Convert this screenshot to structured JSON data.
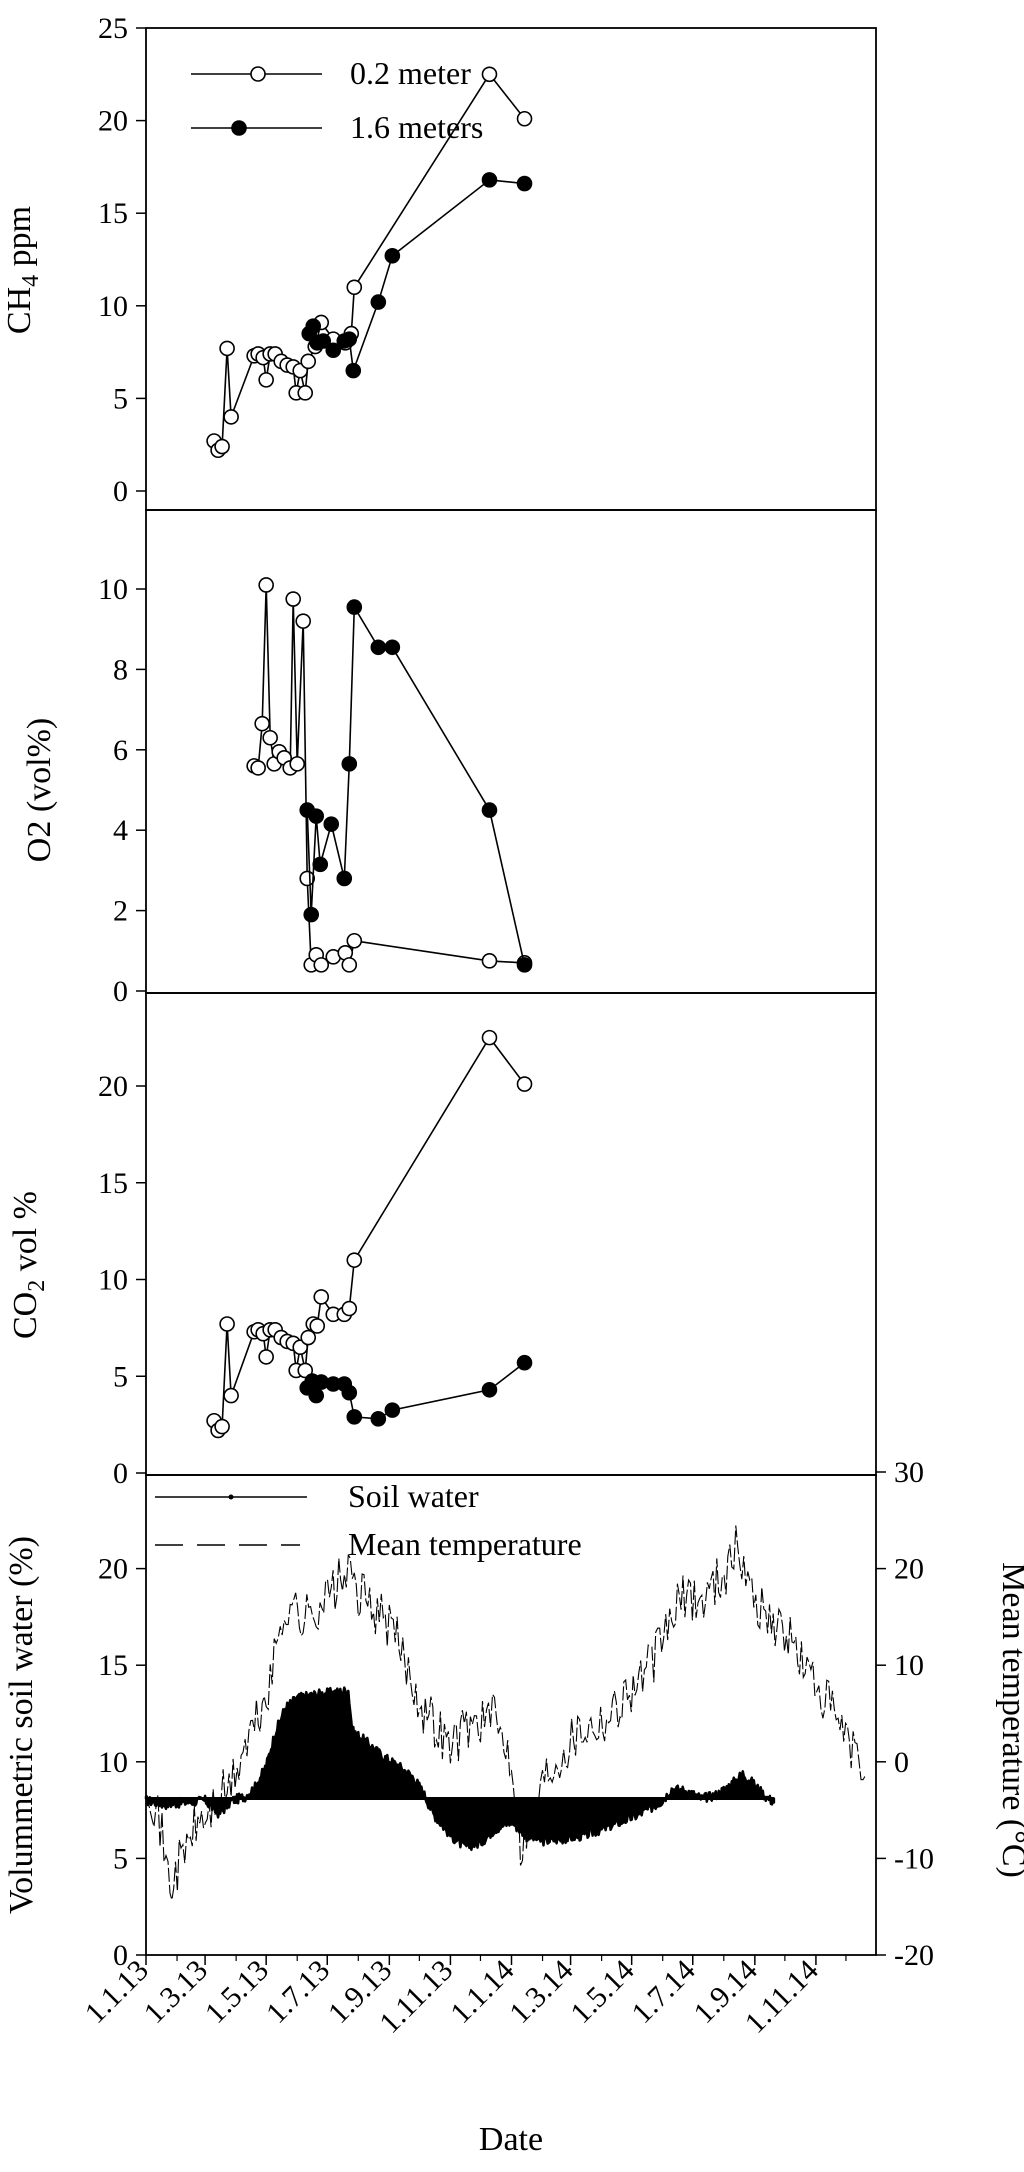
{
  "chart_data": [
    {
      "type": "line",
      "panel": "ch4",
      "ylabel_main": "CH",
      "ylabel_sub": "4",
      "ylabel_rest": " ppm",
      "ylim": [
        0,
        25
      ],
      "yticks": [
        0,
        5,
        10,
        15,
        20,
        25
      ],
      "legend": {
        "position": "top-left",
        "entries": [
          "0.2  meter",
          "1.6 meters"
        ]
      },
      "series": [
        {
          "name": "0.2 meter",
          "marker": "open-circle",
          "points": [
            [
              "2013-03-10",
              2.7
            ],
            [
              "2013-03-14",
              2.2
            ],
            [
              "2013-03-18",
              2.4
            ],
            [
              "2013-03-23",
              7.7
            ],
            [
              "2013-03-27",
              4.0
            ],
            [
              "2013-04-19",
              7.3
            ],
            [
              "2013-04-23",
              7.4
            ],
            [
              "2013-04-28",
              7.2
            ],
            [
              "2013-05-01",
              6.0
            ],
            [
              "2013-05-05",
              7.4
            ],
            [
              "2013-05-10",
              7.4
            ],
            [
              "2013-05-16",
              7.0
            ],
            [
              "2013-05-22",
              6.8
            ],
            [
              "2013-05-28",
              6.7
            ],
            [
              "2013-05-31",
              5.3
            ],
            [
              "2013-06-04",
              6.5
            ],
            [
              "2013-06-09",
              5.3
            ],
            [
              "2013-06-12",
              7.0
            ],
            [
              "2013-06-19",
              7.8
            ],
            [
              "2013-06-25",
              9.1
            ],
            [
              "2013-07-07",
              8.2
            ],
            [
              "2013-07-19",
              8.0
            ],
            [
              "2013-07-25",
              8.5
            ],
            [
              "2013-07-28",
              11.0
            ],
            [
              "2013-12-10",
              22.5
            ],
            [
              "2014-01-14",
              20.1
            ]
          ]
        },
        {
          "name": "1.6 meters",
          "marker": "filled-circle",
          "points": [
            [
              "2013-06-13",
              8.5
            ],
            [
              "2013-06-17",
              8.9
            ],
            [
              "2013-06-21",
              8.0
            ],
            [
              "2013-06-27",
              8.1
            ],
            [
              "2013-07-07",
              7.6
            ],
            [
              "2013-07-18",
              8.1
            ],
            [
              "2013-07-23",
              8.2
            ],
            [
              "2013-07-27",
              6.5
            ],
            [
              "2013-08-21",
              10.2
            ],
            [
              "2013-09-04",
              12.7
            ],
            [
              "2013-12-10",
              16.8
            ],
            [
              "2014-01-14",
              16.6
            ]
          ]
        }
      ]
    },
    {
      "type": "line",
      "panel": "o2",
      "ylabel": "O2 (vol%)",
      "ylim": [
        0,
        11.5
      ],
      "yticks": [
        0,
        2,
        4,
        6,
        8,
        10
      ],
      "series": [
        {
          "name": "0.2 meter",
          "marker": "open-circle",
          "points": [
            [
              "2013-04-19",
              5.6
            ],
            [
              "2013-04-23",
              5.55
            ],
            [
              "2013-04-27",
              6.65
            ],
            [
              "2013-05-01",
              10.1
            ],
            [
              "2013-05-05",
              6.3
            ],
            [
              "2013-05-09",
              5.65
            ],
            [
              "2013-05-14",
              5.95
            ],
            [
              "2013-05-19",
              5.8
            ],
            [
              "2013-05-25",
              5.55
            ],
            [
              "2013-05-28",
              9.75
            ],
            [
              "2013-06-01",
              5.65
            ],
            [
              "2013-06-07",
              9.2
            ],
            [
              "2013-06-11",
              2.8
            ],
            [
              "2013-06-15",
              0.65
            ],
            [
              "2013-06-20",
              0.9
            ],
            [
              "2013-06-25",
              0.65
            ],
            [
              "2013-07-07",
              0.85
            ],
            [
              "2013-07-19",
              0.95
            ],
            [
              "2013-07-23",
              0.65
            ],
            [
              "2013-07-28",
              1.25
            ],
            [
              "2013-12-10",
              0.75
            ],
            [
              "2014-01-14",
              0.7
            ]
          ]
        },
        {
          "name": "1.6 meters",
          "marker": "filled-circle",
          "points": [
            [
              "2013-06-11",
              4.5
            ],
            [
              "2013-06-15",
              1.9
            ],
            [
              "2013-06-20",
              4.35
            ],
            [
              "2013-06-24",
              3.15
            ],
            [
              "2013-07-05",
              4.15
            ],
            [
              "2013-07-18",
              2.8
            ],
            [
              "2013-07-23",
              5.65
            ],
            [
              "2013-07-28",
              9.55
            ],
            [
              "2013-08-21",
              8.55
            ],
            [
              "2013-09-04",
              8.55
            ],
            [
              "2013-12-10",
              4.5
            ],
            [
              "2014-01-14",
              0.65
            ]
          ]
        }
      ]
    },
    {
      "type": "line",
      "panel": "co2",
      "ylabel_main": "CO",
      "ylabel_sub": "2",
      "ylabel_rest": " vol %",
      "ylim": [
        0,
        25
      ],
      "yticks": [
        0,
        5,
        10,
        15,
        20
      ],
      "series": [
        {
          "name": "0.2 meter",
          "marker": "open-circle",
          "points": [
            [
              "2013-03-10",
              2.7
            ],
            [
              "2013-03-14",
              2.2
            ],
            [
              "2013-03-18",
              2.4
            ],
            [
              "2013-03-23",
              7.7
            ],
            [
              "2013-03-27",
              4.0
            ],
            [
              "2013-04-19",
              7.3
            ],
            [
              "2013-04-23",
              7.4
            ],
            [
              "2013-04-28",
              7.2
            ],
            [
              "2013-05-01",
              6.0
            ],
            [
              "2013-05-05",
              7.4
            ],
            [
              "2013-05-10",
              7.4
            ],
            [
              "2013-05-16",
              7.0
            ],
            [
              "2013-05-22",
              6.8
            ],
            [
              "2013-05-28",
              6.7
            ],
            [
              "2013-05-31",
              5.3
            ],
            [
              "2013-06-04",
              6.5
            ],
            [
              "2013-06-09",
              5.3
            ],
            [
              "2013-06-12",
              7.0
            ],
            [
              "2013-06-17",
              7.7
            ],
            [
              "2013-06-21",
              7.6
            ],
            [
              "2013-06-25",
              9.1
            ],
            [
              "2013-07-07",
              8.2
            ],
            [
              "2013-07-18",
              8.2
            ],
            [
              "2013-07-23",
              8.5
            ],
            [
              "2013-07-28",
              11.0
            ],
            [
              "2013-12-10",
              22.5
            ],
            [
              "2014-01-14",
              20.1
            ]
          ]
        },
        {
          "name": "1.6 meters",
          "marker": "filled-circle",
          "points": [
            [
              "2013-06-11",
              4.4
            ],
            [
              "2013-06-16",
              4.75
            ],
            [
              "2013-06-20",
              4.0
            ],
            [
              "2013-06-25",
              4.7
            ],
            [
              "2013-07-07",
              4.6
            ],
            [
              "2013-07-18",
              4.6
            ],
            [
              "2013-07-23",
              4.15
            ],
            [
              "2013-07-28",
              2.9
            ],
            [
              "2013-08-21",
              2.8
            ],
            [
              "2013-09-04",
              3.25
            ],
            [
              "2013-12-10",
              4.3
            ],
            [
              "2014-01-14",
              5.7
            ]
          ]
        }
      ]
    },
    {
      "type": "area",
      "panel": "soil",
      "ylabel": "Volummetric soil water (%)",
      "ylabel_right": "Mean temperature (°C)",
      "ylim": [
        0,
        25
      ],
      "yticks": [
        0,
        5,
        10,
        15,
        20
      ],
      "ylim_right": [
        -20,
        30
      ],
      "yticks_right": [
        -20,
        -10,
        0,
        10,
        20,
        30
      ],
      "baseline": 8.1,
      "xlabel": "Date",
      "xticks": [
        "1.1.13",
        "1.3.13",
        "1.5.13",
        "1.7.13",
        "1.9.13",
        "1.11.13",
        "1.1.14",
        "1.3.14",
        "1.5.14",
        "1.7.14",
        "1.9.14",
        "1.11.14"
      ],
      "xrange": [
        "2013-01-01",
        "2014-12-31"
      ],
      "legend": {
        "position": "top-left",
        "entries": [
          "Soil water",
          "Mean temperature"
        ]
      },
      "soil_water_anchors": [
        [
          "2013-01-01",
          8.0
        ],
        [
          "2013-01-20",
          7.8
        ],
        [
          "2013-02-10",
          7.9
        ],
        [
          "2013-03-01",
          8.0
        ],
        [
          "2013-03-15",
          7.3
        ],
        [
          "2013-03-28",
          8.0
        ],
        [
          "2013-04-10",
          8.2
        ],
        [
          "2013-04-20",
          8.7
        ],
        [
          "2013-05-01",
          9.8
        ],
        [
          "2013-05-10",
          11.5
        ],
        [
          "2013-05-20",
          12.8
        ],
        [
          "2013-06-01",
          13.3
        ],
        [
          "2013-06-20",
          13.5
        ],
        [
          "2013-07-10",
          13.6
        ],
        [
          "2013-07-22",
          13.7
        ],
        [
          "2013-07-26",
          11.6
        ],
        [
          "2013-08-10",
          11.0
        ],
        [
          "2013-08-25",
          10.3
        ],
        [
          "2013-09-10",
          9.8
        ],
        [
          "2013-09-25",
          9.2
        ],
        [
          "2013-10-05",
          8.4
        ],
        [
          "2013-10-15",
          7.3
        ],
        [
          "2013-11-01",
          6.2
        ],
        [
          "2013-11-15",
          5.6
        ],
        [
          "2013-12-01",
          5.8
        ],
        [
          "2013-12-15",
          6.5
        ],
        [
          "2014-01-01",
          6.9
        ],
        [
          "2014-01-15",
          6.2
        ],
        [
          "2014-02-01",
          5.9
        ],
        [
          "2014-02-20",
          6.0
        ],
        [
          "2014-03-15",
          6.2
        ],
        [
          "2014-04-01",
          6.5
        ],
        [
          "2014-04-20",
          6.9
        ],
        [
          "2014-05-05",
          7.2
        ],
        [
          "2014-05-20",
          7.6
        ],
        [
          "2014-06-01",
          8.0
        ],
        [
          "2014-06-10",
          8.6
        ],
        [
          "2014-06-25",
          8.5
        ],
        [
          "2014-07-10",
          8.1
        ],
        [
          "2014-07-25",
          8.3
        ],
        [
          "2014-08-10",
          8.9
        ],
        [
          "2014-08-20",
          9.4
        ],
        [
          "2014-09-01",
          8.8
        ],
        [
          "2014-09-12",
          8.2
        ],
        [
          "2014-09-20",
          7.9
        ]
      ],
      "temperature_anchors": [
        [
          "2013-01-01",
          -1.0
        ],
        [
          "2013-01-15",
          -6.5
        ],
        [
          "2013-01-25",
          -13.0
        ],
        [
          "2013-02-05",
          -10.0
        ],
        [
          "2013-02-20",
          -6.5
        ],
        [
          "2013-03-05",
          -5.5
        ],
        [
          "2013-03-15",
          -3.5
        ],
        [
          "2013-03-25",
          -3.0
        ],
        [
          "2013-04-10",
          1.5
        ],
        [
          "2013-04-25",
          5.0
        ],
        [
          "2013-05-05",
          8.0
        ],
        [
          "2013-05-15",
          14.0
        ],
        [
          "2013-05-25",
          17.0
        ],
        [
          "2013-06-05",
          14.5
        ],
        [
          "2013-06-20",
          16.0
        ],
        [
          "2013-07-05",
          17.5
        ],
        [
          "2013-07-20",
          19.5
        ],
        [
          "2013-08-01",
          17.5
        ],
        [
          "2013-08-20",
          15.5
        ],
        [
          "2013-09-05",
          13.5
        ],
        [
          "2013-09-20",
          9.5
        ],
        [
          "2013-10-05",
          5.5
        ],
        [
          "2013-10-20",
          3.5
        ],
        [
          "2013-11-01",
          1.5
        ],
        [
          "2013-11-15",
          3.5
        ],
        [
          "2013-12-01",
          4.5
        ],
        [
          "2013-12-15",
          4.5
        ],
        [
          "2014-01-01",
          0.5
        ],
        [
          "2014-01-10",
          -8.5
        ],
        [
          "2014-01-20",
          -6.0
        ],
        [
          "2014-02-05",
          -1.0
        ],
        [
          "2014-02-20",
          1.0
        ],
        [
          "2014-03-10",
          3.5
        ],
        [
          "2014-03-25",
          4.0
        ],
        [
          "2014-04-10",
          5.0
        ],
        [
          "2014-04-25",
          7.0
        ],
        [
          "2014-05-10",
          8.5
        ],
        [
          "2014-05-25",
          11.0
        ],
        [
          "2014-06-10",
          15.0
        ],
        [
          "2014-06-25",
          17.5
        ],
        [
          "2014-07-10",
          16.5
        ],
        [
          "2014-07-25",
          19.0
        ],
        [
          "2014-08-05",
          20.0
        ],
        [
          "2014-08-15",
          22.5
        ],
        [
          "2014-08-25",
          18.5
        ],
        [
          "2014-09-10",
          15.5
        ],
        [
          "2014-09-25",
          14.0
        ],
        [
          "2014-10-10",
          12.0
        ],
        [
          "2014-10-25",
          9.0
        ],
        [
          "2014-11-10",
          6.5
        ],
        [
          "2014-11-25",
          3.5
        ],
        [
          "2014-12-10",
          0.5
        ],
        [
          "2014-12-20",
          -1.5
        ]
      ]
    }
  ]
}
